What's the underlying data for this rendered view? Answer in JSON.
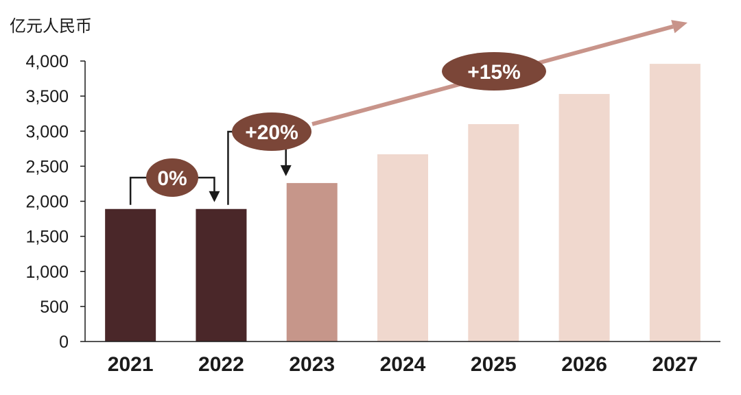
{
  "chart_data": {
    "type": "bar",
    "unit_label": "亿元人民币",
    "categories": [
      "2021",
      "2022",
      "2023",
      "2024",
      "2025",
      "2026",
      "2027"
    ],
    "values": [
      1890,
      1890,
      2260,
      2670,
      3100,
      3530,
      3960
    ],
    "bar_colors": [
      "#4a2729",
      "#4a2729",
      "#c6968a",
      "#f0d8ce",
      "#f0d8ce",
      "#f0d8ce",
      "#f0d8ce"
    ],
    "ylim": [
      0,
      4000
    ],
    "yticks": [
      0,
      500,
      1000,
      1500,
      2000,
      2500,
      3000,
      3500,
      4000
    ],
    "ytick_labels": [
      "0",
      "500",
      "1,000",
      "1,500",
      "2,000",
      "2,500",
      "3,000",
      "3,500",
      "4,000"
    ],
    "grid": false,
    "annotations": [
      {
        "text": "0%",
        "from": "2021",
        "to": "2022",
        "style": "bracket-arrow"
      },
      {
        "text": "+20%",
        "from": "2022",
        "to": "2023",
        "style": "bracket-arrow"
      },
      {
        "text": "+15%",
        "from": "2023",
        "to": "2027",
        "style": "trend-arrow"
      }
    ],
    "colors": {
      "annotation_fill": "#7b4638",
      "trend_arrow": "#c8948a",
      "axis": "#1a1a1a"
    }
  }
}
